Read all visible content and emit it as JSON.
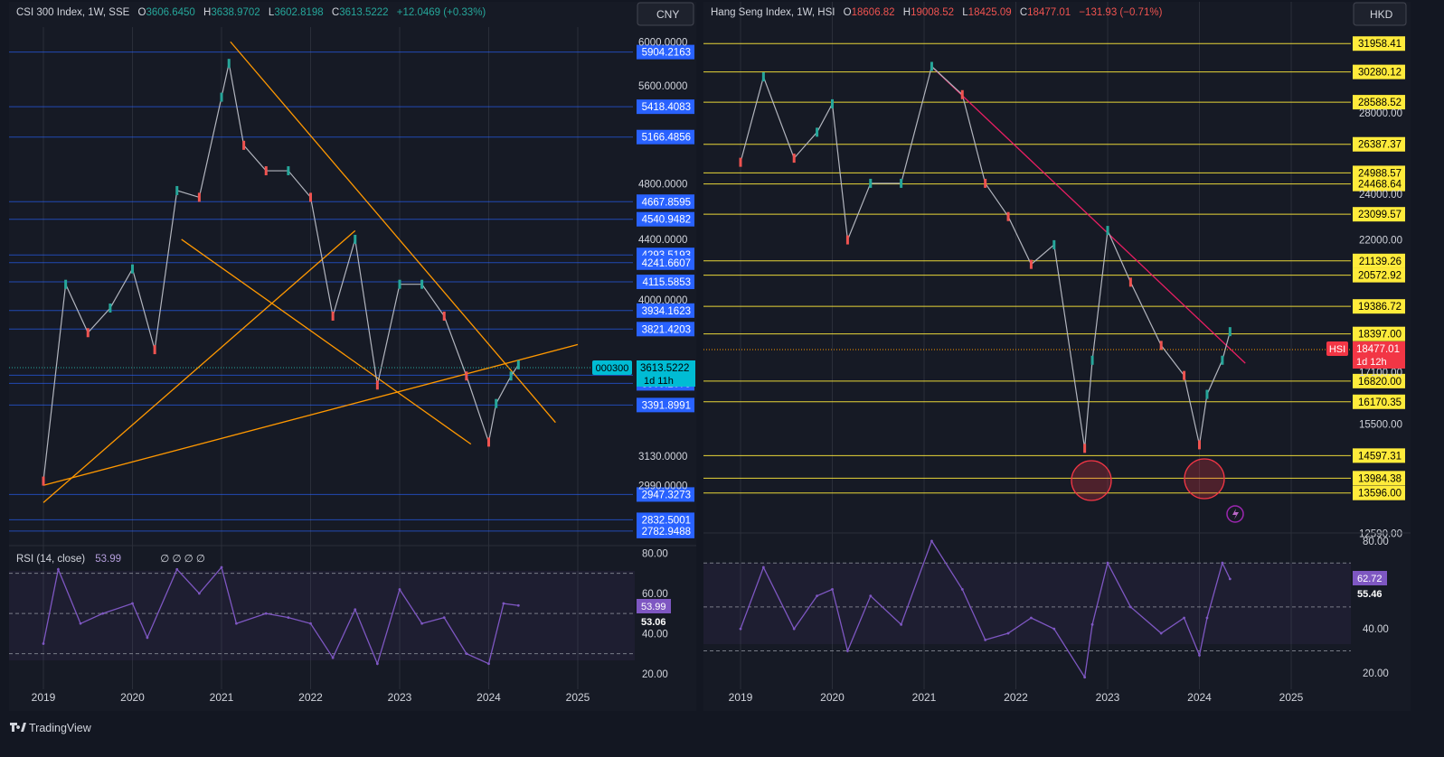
{
  "app": {
    "brand": "TradingView"
  },
  "colors": {
    "bg": "#131722",
    "panel": "#161a25",
    "grid": "#2a2e39",
    "text": "#d1d4dc",
    "blue_level": "#2962ff",
    "yellow_level": "#ffeb3b",
    "orange_trend": "#ff9800",
    "pink_trend": "#e91e63",
    "rsi": "#7e57c2",
    "up": "#26a69a",
    "down": "#ef5350",
    "ok_tag": "#00bcd4",
    "last_price": "#f23645"
  },
  "left": {
    "header": {
      "symbol": "CSI 300 Index, 1W, SSE",
      "o_label": "O",
      "o_value": "3606.6450",
      "h_label": "H",
      "h_value": "3638.9702",
      "l_label": "L",
      "l_value": "3602.8198",
      "c_label": "C",
      "c_value": "3613.5222",
      "change": "+12.0469 (+0.33%)"
    },
    "currency_button": "CNY",
    "symbol_tag": "000300",
    "last_price": "3613.5222",
    "countdown": "1d 11h",
    "rsi_header": "RSI (14, close)",
    "rsi_value_text": "53.99",
    "rsi_marker_text": "∅ ∅ ∅ ∅",
    "rsi_badge": "53.99",
    "rsi_ma": "53.06"
  },
  "right": {
    "header": {
      "symbol": "Hang Seng Index, 1W, HSI",
      "o_label": "O",
      "o_value": "18606.82",
      "h_label": "H",
      "h_value": "19008.52",
      "l_label": "L",
      "l_value": "18425.09",
      "c_label": "C",
      "c_value": "18477.01",
      "change": "−131.93 (−0.71%)"
    },
    "currency_button": "HKD",
    "symbol_tag": "HSI",
    "last_price": "18477.01",
    "countdown": "1d 12h",
    "rsi_badge": "62.72",
    "rsi_ma": "55.46"
  },
  "chart_data": [
    {
      "type": "line",
      "title": "CSI 300 Index, 1W, SSE",
      "x_ticks": [
        "2019",
        "2020",
        "2021",
        "2022",
        "2023",
        "2024",
        "2025"
      ],
      "y_ticks": [
        "6000.0000",
        "5600.0000",
        "4800.0000",
        "4400.0000",
        "4000.0000",
        "3130.0000",
        "2990.0000"
      ],
      "ylim": [
        2720,
        6140
      ],
      "scale": "log",
      "levels": [
        5904.2163,
        5418.4083,
        5166.4856,
        4667.8595,
        4540.9482,
        4293.5193,
        4241.6607,
        4115.5853,
        3934.1623,
        3821.4203,
        3554.5597,
        3509.2075,
        3391.8991,
        2947.3273,
        2832.5001,
        2782.9488
      ],
      "series": [
        {
          "x": [
            "2019-01",
            "2019-04",
            "2019-07",
            "2019-10",
            "2020-01",
            "2020-04",
            "2020-07",
            "2020-10",
            "2021-01",
            "2021-02",
            "2021-04",
            "2021-07",
            "2021-10",
            "2022-01",
            "2022-04",
            "2022-07",
            "2022-10",
            "2023-01",
            "2023-04",
            "2023-07",
            "2023-10",
            "2024-01",
            "2024-02",
            "2024-04",
            "2024-05"
          ],
          "values": [
            3010,
            4100,
            3800,
            3950,
            4200,
            3700,
            4750,
            4700,
            5500,
            5800,
            5100,
            4900,
            4900,
            4700,
            3900,
            4400,
            3500,
            4100,
            4100,
            3900,
            3550,
            3200,
            3400,
            3550,
            3613
          ]
        }
      ],
      "rsi": {
        "name": "RSI (14, close)",
        "ticks": [
          "80.00",
          "60.00",
          "40.00",
          "20.00"
        ],
        "ylim": [
          15,
          82
        ],
        "bands": [
          70,
          50,
          30
        ],
        "x": [
          "2019-01",
          "2019-03",
          "2019-06",
          "2019-09",
          "2020-01",
          "2020-03",
          "2020-07",
          "2020-10",
          "2021-01",
          "2021-03",
          "2021-07",
          "2021-10",
          "2022-01",
          "2022-04",
          "2022-07",
          "2022-10",
          "2023-01",
          "2023-04",
          "2023-07",
          "2023-10",
          "2024-01",
          "2024-03",
          "2024-05"
        ],
        "values": [
          35,
          72,
          45,
          50,
          55,
          38,
          72,
          60,
          73,
          45,
          50,
          48,
          45,
          28,
          52,
          25,
          62,
          45,
          48,
          30,
          25,
          55,
          54
        ],
        "last": 53.99,
        "ma_last": 53.06
      }
    },
    {
      "type": "line",
      "title": "Hang Seng Index, 1W, HSI",
      "x_ticks": [
        "2019",
        "2020",
        "2021",
        "2022",
        "2023",
        "2024",
        "2025"
      ],
      "y_ticks": [
        "28000.00",
        "24000.00",
        "22000.00",
        "17100.00",
        "15500.00",
        "12590.00"
      ],
      "ylim": [
        12600,
        34600
      ],
      "scale": "log",
      "levels": [
        31958.41,
        30280.12,
        28588.52,
        26387.37,
        24988.57,
        24468.64,
        23099.57,
        21139.26,
        20572.92,
        19386.72,
        18397.0,
        16820.0,
        16170.35,
        14597.31,
        13984.38,
        13596.0
      ],
      "series": [
        {
          "x": [
            "2019-01",
            "2019-04",
            "2019-08",
            "2019-11",
            "2020-01",
            "2020-03",
            "2020-06",
            "2020-10",
            "2021-02",
            "2021-06",
            "2021-09",
            "2021-12",
            "2022-03",
            "2022-06",
            "2022-10",
            "2022-11",
            "2023-01",
            "2023-04",
            "2023-08",
            "2023-11",
            "2024-01",
            "2024-02",
            "2024-04",
            "2024-05"
          ],
          "values": [
            25500,
            30000,
            25700,
            27000,
            28500,
            22000,
            24500,
            24500,
            30600,
            29000,
            24500,
            23000,
            21000,
            21800,
            14800,
            17500,
            22400,
            20300,
            18000,
            17000,
            14900,
            16400,
            17500,
            18477
          ]
        }
      ],
      "rsi": {
        "ticks": [
          "80.00",
          "40.00",
          "20.00"
        ],
        "ylim": [
          15,
          82
        ],
        "bands": [
          70,
          50,
          30
        ],
        "x": [
          "2019-01",
          "2019-04",
          "2019-08",
          "2019-11",
          "2020-01",
          "2020-03",
          "2020-06",
          "2020-10",
          "2021-02",
          "2021-06",
          "2021-09",
          "2021-12",
          "2022-03",
          "2022-06",
          "2022-10",
          "2022-11",
          "2023-01",
          "2023-04",
          "2023-08",
          "2023-11",
          "2024-01",
          "2024-02",
          "2024-04",
          "2024-05"
        ],
        "values": [
          40,
          68,
          40,
          55,
          58,
          30,
          55,
          42,
          80,
          58,
          35,
          38,
          45,
          40,
          18,
          42,
          70,
          50,
          38,
          45,
          28,
          45,
          70,
          62.72
        ],
        "last": 62.72,
        "ma_last": 55.46
      }
    }
  ]
}
